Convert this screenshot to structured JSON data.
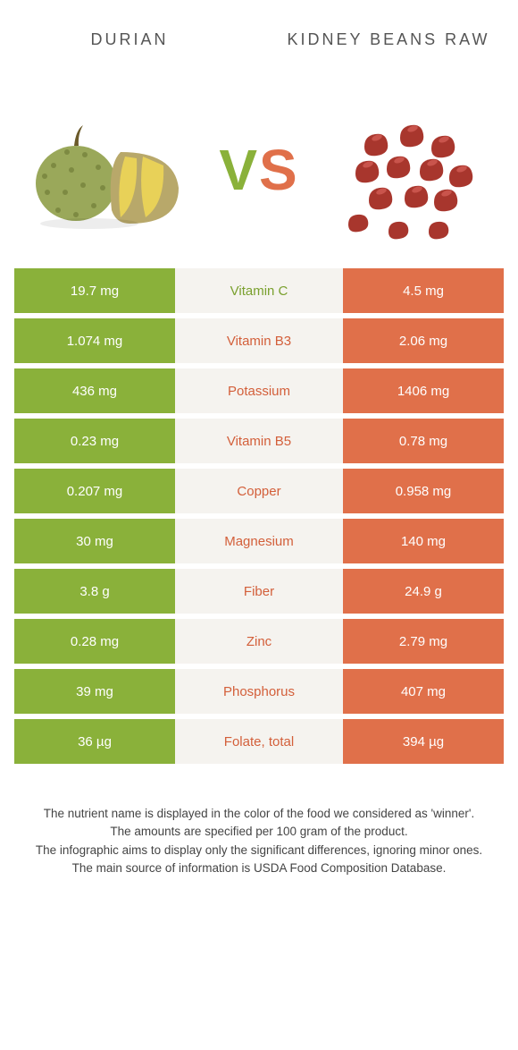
{
  "header": {
    "left": "Durian",
    "right": "Kidney Beans Raw",
    "vs": "VS"
  },
  "colors": {
    "left": "#8ab13a",
    "right": "#e0704a",
    "mid_bg": "#f5f3ef",
    "win_left_text": "#7aa02e",
    "win_right_text": "#d35f3a"
  },
  "rows": [
    {
      "left": "19.7 mg",
      "label": "Vitamin C",
      "right": "4.5 mg",
      "winner": "left"
    },
    {
      "left": "1.074 mg",
      "label": "Vitamin B3",
      "right": "2.06 mg",
      "winner": "right"
    },
    {
      "left": "436 mg",
      "label": "Potassium",
      "right": "1406 mg",
      "winner": "right"
    },
    {
      "left": "0.23 mg",
      "label": "Vitamin B5",
      "right": "0.78 mg",
      "winner": "right"
    },
    {
      "left": "0.207 mg",
      "label": "Copper",
      "right": "0.958 mg",
      "winner": "right"
    },
    {
      "left": "30 mg",
      "label": "Magnesium",
      "right": "140 mg",
      "winner": "right"
    },
    {
      "left": "3.8 g",
      "label": "Fiber",
      "right": "24.9 g",
      "winner": "right"
    },
    {
      "left": "0.28 mg",
      "label": "Zinc",
      "right": "2.79 mg",
      "winner": "right"
    },
    {
      "left": "39 mg",
      "label": "Phosphorus",
      "right": "407 mg",
      "winner": "right"
    },
    {
      "left": "36 µg",
      "label": "Folate, total",
      "right": "394 µg",
      "winner": "right"
    }
  ],
  "footer": {
    "l1": "The nutrient name is displayed in the color of the food we considered as 'winner'.",
    "l2": "The amounts are specified per 100 gram of the product.",
    "l3": "The infographic aims to display only the significant differences, ignoring minor ones.",
    "l4": "The main source of information is USDA Food Composition Database."
  }
}
